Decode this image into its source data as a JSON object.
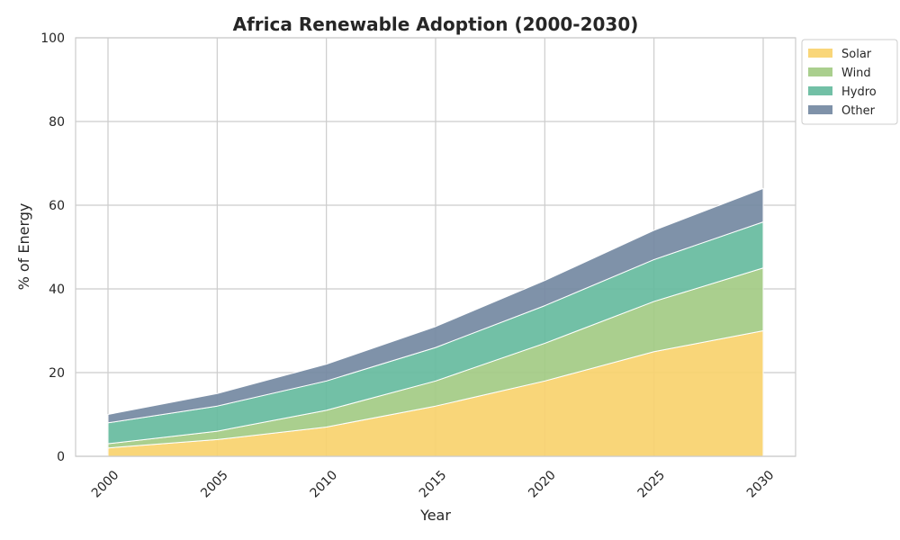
{
  "chart_data": {
    "type": "area",
    "stacked": true,
    "title": "Africa Renewable Adoption (2000-2030)",
    "xlabel": "Year",
    "ylabel": "% of Energy",
    "x": [
      2000,
      2005,
      2010,
      2015,
      2020,
      2025,
      2030
    ],
    "x_tick_labels": [
      "2000",
      "2005",
      "2010",
      "2015",
      "2020",
      "2025",
      "2030"
    ],
    "y_ticks": [
      0,
      20,
      40,
      60,
      80,
      100
    ],
    "y_tick_labels": [
      "0",
      "20",
      "40",
      "60",
      "80",
      "100"
    ],
    "ylim": [
      0,
      100
    ],
    "grid": true,
    "legend_position": "outside top-right",
    "series": [
      {
        "name": "Solar",
        "color": "#f9d26e",
        "values": [
          2,
          4,
          7,
          12,
          18,
          25,
          30
        ]
      },
      {
        "name": "Wind",
        "color": "#a3cb84",
        "values": [
          1,
          2,
          4,
          6,
          9,
          12,
          15
        ]
      },
      {
        "name": "Hydro",
        "color": "#66bb9e",
        "values": [
          5,
          6,
          7,
          8,
          9,
          10,
          11
        ]
      },
      {
        "name": "Other",
        "color": "#7489a2",
        "values": [
          2,
          3,
          4,
          5,
          6,
          7,
          8
        ]
      }
    ]
  }
}
